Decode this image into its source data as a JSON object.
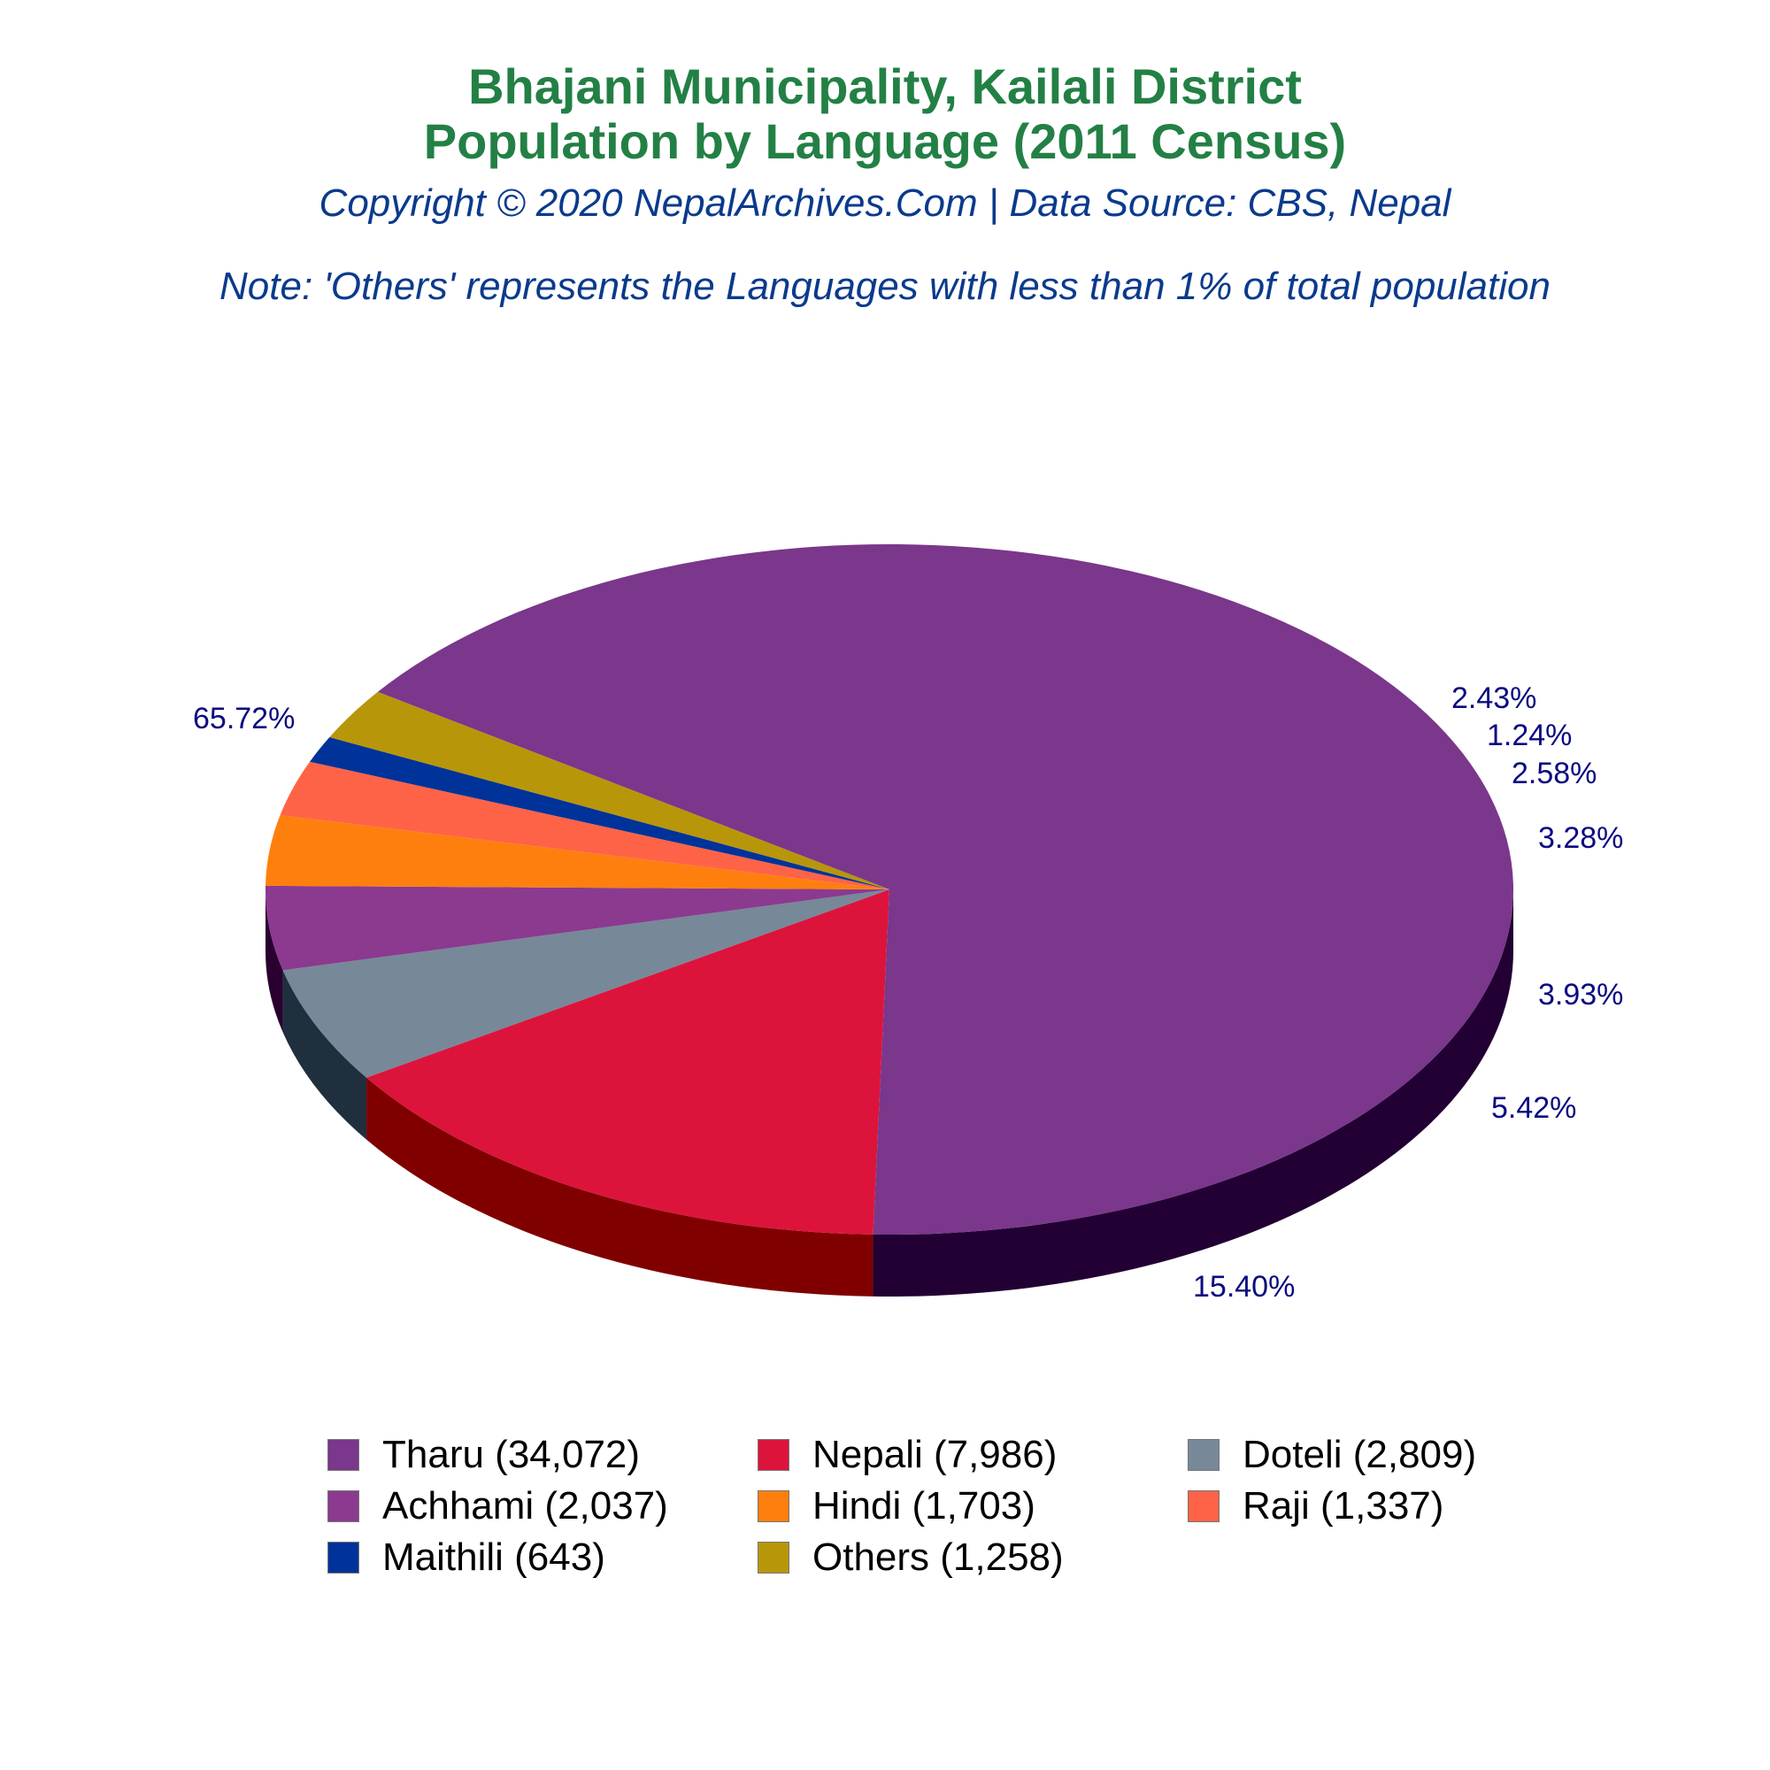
{
  "header": {
    "title_line1": "Bhajani Municipality, Kailali District",
    "title_line2": "Population by Language (2011 Census)",
    "copyright": "Copyright © 2020 NepalArchives.Com | Data Source: CBS, Nepal",
    "note": "Note: 'Others' represents the Languages with less than 1% of total population"
  },
  "chart_data": {
    "type": "pie",
    "title": "Bhajani Municipality, Kailali District Population by Language (2011 Census)",
    "three_d": true,
    "legend_position": "bottom",
    "slices": [
      {
        "name": "Tharu",
        "value": 34072,
        "percent_label": "65.72%",
        "legend_label": "Tharu (34,072)",
        "color": "#7a378b",
        "side_color": "#220033"
      },
      {
        "name": "Nepali",
        "value": 7986,
        "percent_label": "15.40%",
        "legend_label": "Nepali (7,986)",
        "color": "#dc143c",
        "side_color": "#800000"
      },
      {
        "name": "Doteli",
        "value": 2809,
        "percent_label": "5.42%",
        "legend_label": "Doteli (2,809)",
        "color": "#778899",
        "side_color": "#1f2f3e"
      },
      {
        "name": "Achhami",
        "value": 2037,
        "percent_label": "3.93%",
        "legend_label": "Achhami (2,037)",
        "color": "#8b3a8f",
        "side_color": "#2a0030"
      },
      {
        "name": "Hindi",
        "value": 1703,
        "percent_label": "3.28%",
        "legend_label": "Hindi (1,703)",
        "color": "#ff7f0e",
        "side_color": "#7a3a00"
      },
      {
        "name": "Raji",
        "value": 1337,
        "percent_label": "2.58%",
        "legend_label": "Raji (1,337)",
        "color": "#ff6347",
        "side_color": "#7a2a1a"
      },
      {
        "name": "Maithili",
        "value": 643,
        "percent_label": "1.24%",
        "legend_label": "Maithili (643)",
        "color": "#003399",
        "side_color": "#001a4d"
      },
      {
        "name": "Others",
        "value": 1258,
        "percent_label": "2.43%",
        "legend_label": "Others (1,258)",
        "color": "#b8960a",
        "side_color": "#5a4a05"
      }
    ]
  }
}
